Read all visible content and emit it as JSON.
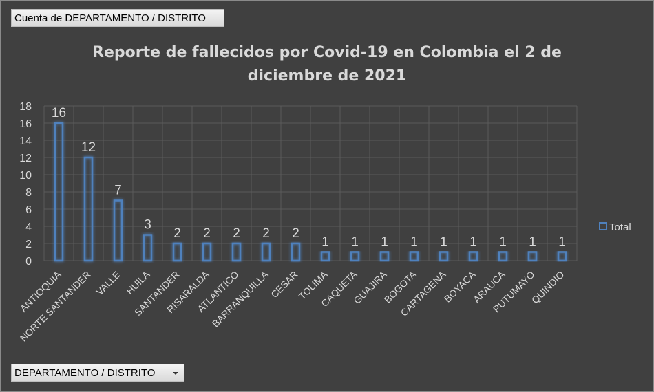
{
  "pivot": {
    "value_field": "Cuenta de DEPARTAMENTO / DISTRITO",
    "axis_field": "DEPARTAMENTO / DISTRITO"
  },
  "colors": {
    "background": "#404040",
    "bar_outline": "#4f81bd",
    "bar_glow": "#3a6fb5",
    "text": "#d9d9d9",
    "grid": "#5a5a5a"
  },
  "chart_data": {
    "type": "bar",
    "title": "Reporte de fallecidos por Covid-19 en Colombia el 2 de diciembre de 2021",
    "title_lines": [
      "Reporte de fallecidos por Covid-19 en Colombia el 2 de",
      "diciembre de 2021"
    ],
    "categories": [
      "ANTIOQUIA",
      "NORTE SANTANDER",
      "VALLE",
      "HUILA",
      "SANTANDER",
      "RISARALDA",
      "ATLANTICO",
      "BARRANQUILLA",
      "CESAR",
      "TOLIMA",
      "CAQUETA",
      "GUAJIRA",
      "BOGOTA",
      "CARTAGENA",
      "BOYACA",
      "ARAUCA",
      "PUTUMAYO",
      "QUINDIO"
    ],
    "series": [
      {
        "name": "Total",
        "values": [
          16,
          12,
          7,
          3,
          2,
          2,
          2,
          2,
          2,
          1,
          1,
          1,
          1,
          1,
          1,
          1,
          1,
          1
        ]
      }
    ],
    "ylim": [
      0,
      18
    ],
    "yticks": [
      0,
      2,
      4,
      6,
      8,
      10,
      12,
      14,
      16,
      18
    ],
    "grid": true,
    "legend": "right",
    "xlabel": "",
    "ylabel": ""
  }
}
